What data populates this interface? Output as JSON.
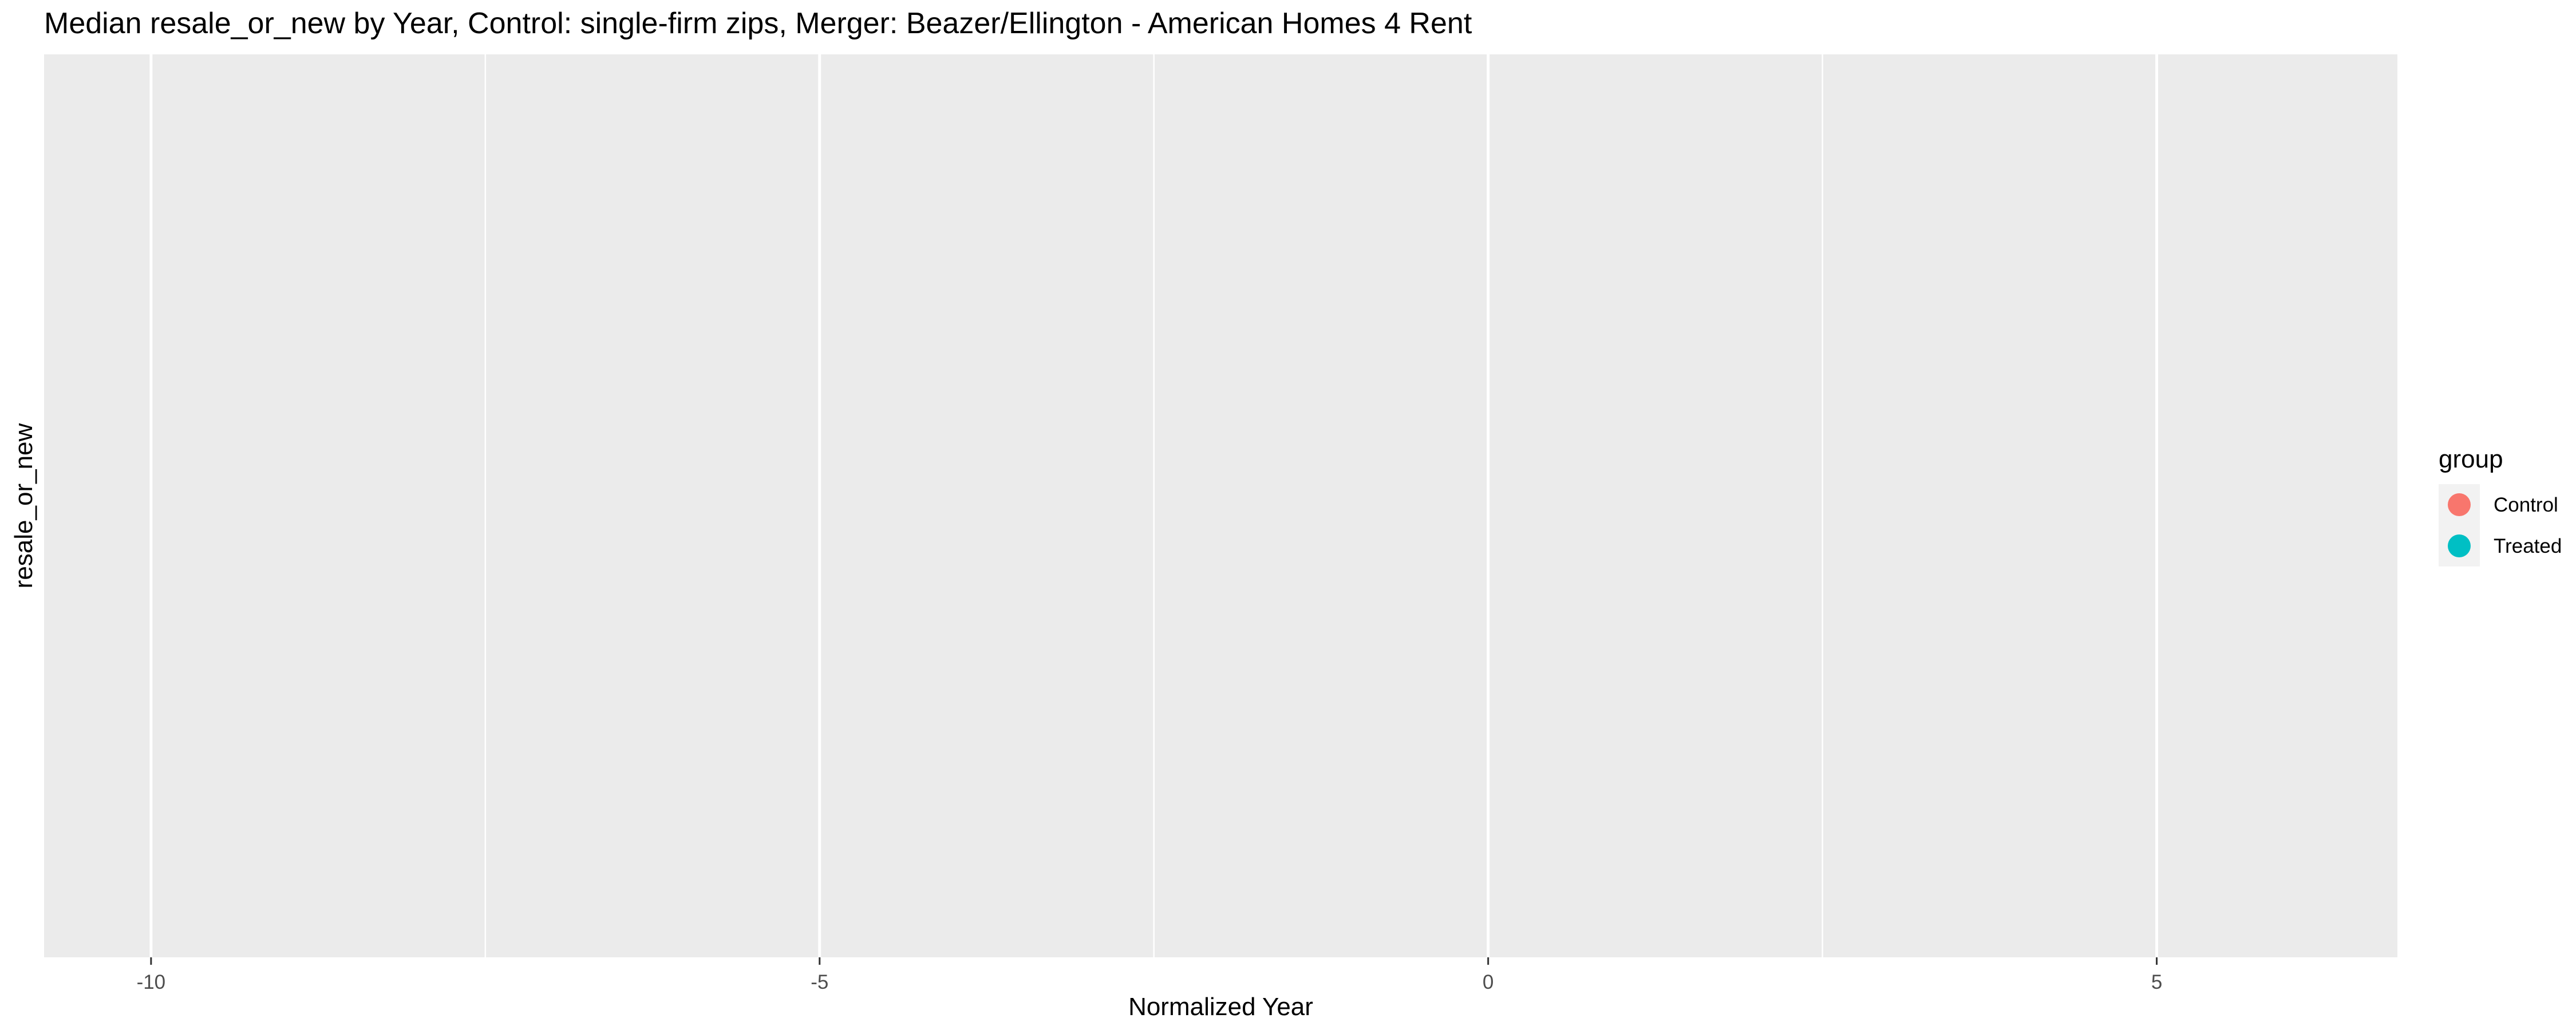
{
  "chart_data": {
    "type": "line",
    "title": "Median resale_or_new by Year, Control: single-firm zips, Merger: Beazer/Ellington - American Homes 4 Rent",
    "xlabel": "Normalized Year",
    "ylabel": "resale_or_new",
    "xlim": [
      -10.8,
      6.8
    ],
    "x_ticks": [
      -10,
      -5,
      0,
      5
    ],
    "x_tick_labels": [
      "-10",
      "-5",
      "0",
      "5"
    ],
    "x_minor_ticks": [
      -7.5,
      -2.5,
      2.5
    ],
    "y_ticks": [],
    "grid": true,
    "legend": {
      "title": "group",
      "position": "right",
      "entries": [
        {
          "name": "Control",
          "color": "#F8766D"
        },
        {
          "name": "Treated",
          "color": "#00BFC4"
        }
      ]
    },
    "series": [
      {
        "name": "Control",
        "color": "#F8766D",
        "x": [],
        "values": []
      },
      {
        "name": "Treated",
        "color": "#00BFC4",
        "x": [],
        "values": []
      }
    ]
  }
}
